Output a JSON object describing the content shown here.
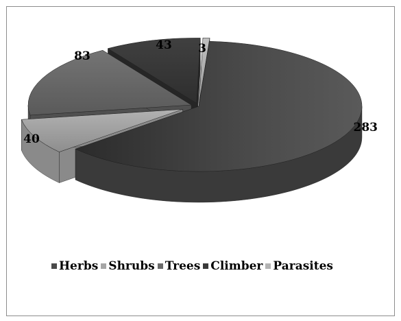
{
  "chart_data": {
    "type": "pie",
    "style": "3d-exploded",
    "title": "",
    "categories": [
      "Herbs",
      "Shrubs",
      "Trees",
      "Climber",
      "Parasites"
    ],
    "values": [
      283,
      40,
      83,
      43,
      3
    ],
    "data_labels": [
      "283",
      "40",
      "83",
      "43",
      "3"
    ],
    "legend_position": "bottom",
    "colors": [
      "#4a4a4a",
      "#a6a6a6",
      "#6a6a6a",
      "#3a3a3a",
      "#b4b4b4"
    ]
  }
}
